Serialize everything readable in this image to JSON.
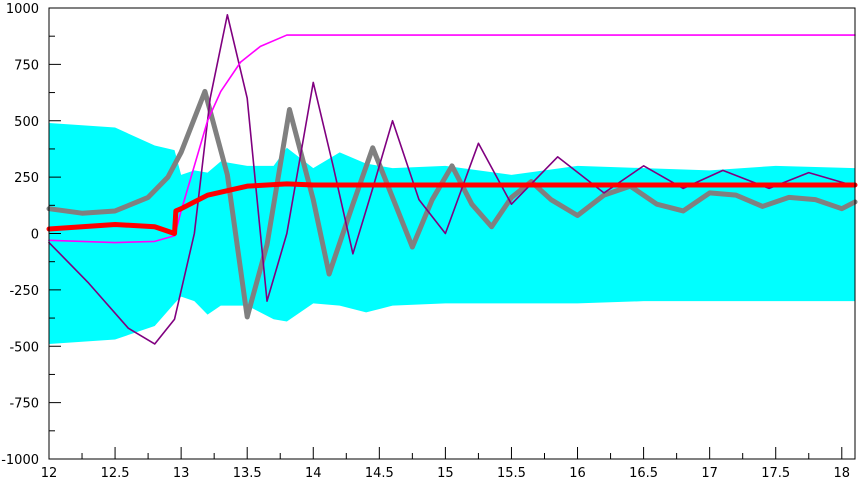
{
  "chart_data": {
    "type": "line",
    "title": "",
    "xlabel": "",
    "ylabel": "",
    "xlim": [
      12,
      18.1
    ],
    "ylim": [
      -1000,
      1000
    ],
    "grid": false,
    "legend": "none",
    "x_ticks": [
      12,
      12.5,
      13,
      13.5,
      14,
      14.5,
      15,
      15.5,
      16,
      16.5,
      17,
      17.5,
      18
    ],
    "x_tick_labels": [
      "12",
      "12.5",
      "13",
      "13.5",
      "14",
      "14.5",
      "15",
      "15.5",
      "16",
      "16.5",
      "17",
      "17.5",
      "18"
    ],
    "y_ticks": [
      1000,
      750,
      500,
      250,
      0,
      -250,
      -500,
      -750,
      -1000
    ],
    "y_tick_labels": [
      "1000",
      "750",
      "500",
      "250",
      "0",
      "-250",
      "-500",
      "-750",
      "-1000"
    ],
    "series": [
      {
        "color": "#00ffff",
        "style": "band",
        "x": [
          12,
          12.5,
          12.8,
          12.95,
          13.0,
          13.1,
          13.2,
          13.3,
          13.5,
          13.7,
          13.8,
          14.0,
          14.2,
          14.4,
          14.6,
          15.0,
          15.5,
          16.0,
          16.5,
          17.0,
          17.5,
          18.1
        ],
        "upper": [
          490,
          470,
          390,
          370,
          260,
          280,
          270,
          320,
          300,
          300,
          380,
          290,
          360,
          310,
          290,
          300,
          260,
          300,
          290,
          280,
          300,
          290
        ],
        "lower": [
          -490,
          -470,
          -410,
          -310,
          -280,
          -300,
          -360,
          -320,
          -320,
          -380,
          -390,
          -310,
          -320,
          -350,
          -320,
          -310,
          -310,
          -310,
          -300,
          -300,
          -300,
          -300
        ]
      },
      {
        "color": "#808080",
        "style": "thick",
        "x": [
          12,
          12.25,
          12.5,
          12.75,
          12.9,
          13.0,
          13.18,
          13.35,
          13.5,
          13.65,
          13.82,
          14.0,
          14.12,
          14.3,
          14.45,
          14.6,
          14.75,
          14.9,
          15.05,
          15.2,
          15.35,
          15.5,
          15.65,
          15.8,
          16.0,
          16.2,
          16.4,
          16.6,
          16.8,
          17.0,
          17.2,
          17.4,
          17.6,
          17.8,
          18.0,
          18.1
        ],
        "y": [
          110,
          90,
          100,
          160,
          250,
          360,
          630,
          260,
          -370,
          -50,
          550,
          150,
          -180,
          130,
          380,
          160,
          -60,
          150,
          300,
          130,
          30,
          160,
          230,
          150,
          80,
          170,
          210,
          130,
          100,
          180,
          170,
          120,
          160,
          150,
          110,
          140
        ]
      },
      {
        "color": "#800080",
        "style": "line",
        "x": [
          12,
          12.3,
          12.6,
          12.8,
          12.95,
          13.1,
          13.22,
          13.35,
          13.5,
          13.65,
          13.8,
          14.0,
          14.15,
          14.3,
          14.45,
          14.6,
          14.8,
          15.0,
          15.25,
          15.5,
          15.85,
          16.2,
          16.5,
          16.8,
          17.1,
          17.45,
          17.75,
          18.1
        ],
        "y": [
          -40,
          -220,
          -420,
          -490,
          -380,
          0,
          600,
          970,
          600,
          -300,
          0,
          670,
          300,
          -90,
          200,
          500,
          150,
          0,
          400,
          130,
          340,
          180,
          300,
          200,
          280,
          200,
          270,
          210
        ]
      },
      {
        "color": "#ff00ff",
        "style": "line",
        "x": [
          12,
          12.5,
          12.8,
          12.95,
          13.0,
          13.1,
          13.2,
          13.3,
          13.45,
          13.6,
          13.8,
          14.0,
          14.5,
          15.0,
          16.0,
          17.0,
          18.1
        ],
        "y": [
          -30,
          -40,
          -35,
          -10,
          100,
          300,
          500,
          630,
          760,
          830,
          880,
          880,
          880,
          880,
          880,
          880,
          880
        ]
      },
      {
        "color": "#ff0000",
        "style": "thick",
        "x": [
          12,
          12.5,
          12.8,
          12.95,
          12.96,
          13.0,
          13.2,
          13.5,
          13.8,
          14.0,
          15.0,
          16.0,
          17.0,
          18.1
        ],
        "y": [
          20,
          40,
          30,
          0,
          100,
          110,
          170,
          210,
          220,
          215,
          215,
          215,
          215,
          215
        ]
      }
    ]
  }
}
